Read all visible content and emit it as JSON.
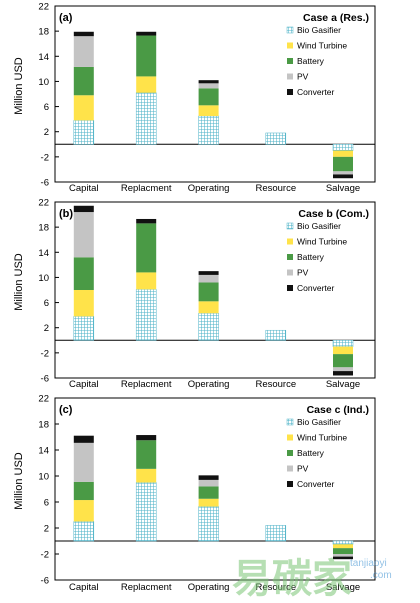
{
  "colors": {
    "bio_gasifier": "#4fb3c8",
    "wind_turbine": "#ffe34a",
    "battery": "#4a9a45",
    "pv": "#c4c4c4",
    "converter": "#111111",
    "axis": "#000000"
  },
  "chart_data": [
    {
      "type": "bar",
      "stacked": true,
      "panel_label": "(a)",
      "title": "Case a (Res.)",
      "ylabel": "Million USD",
      "ylim": [
        -6,
        22
      ],
      "yticks": [
        "22",
        "18",
        "14",
        "10",
        "6",
        "2",
        "-2",
        "-6"
      ],
      "yticks_values": [
        22,
        18,
        14,
        10,
        6,
        2,
        -2,
        -6
      ],
      "categories": [
        "Capital",
        "Replacment",
        "Operating",
        "Resource",
        "Salvage"
      ],
      "legend_position": "top-right",
      "series": [
        {
          "name": "Bio Gasifier",
          "values": [
            3.8,
            8.2,
            4.5,
            1.8,
            -1.0
          ]
        },
        {
          "name": "Wind Turbine",
          "values": [
            4.0,
            2.6,
            1.7,
            0,
            -1.0
          ]
        },
        {
          "name": "Battery",
          "values": [
            4.5,
            6.5,
            2.7,
            0,
            -2.3
          ]
        },
        {
          "name": "PV",
          "values": [
            4.9,
            0,
            0.8,
            0,
            -0.5
          ]
        },
        {
          "name": "Converter",
          "values": [
            0.7,
            0.6,
            0.5,
            0,
            -0.6
          ]
        }
      ]
    },
    {
      "type": "bar",
      "stacked": true,
      "panel_label": "(b)",
      "title": "Case b (Com.)",
      "ylabel": "Million USD",
      "ylim": [
        -6,
        22
      ],
      "yticks": [
        "22",
        "18",
        "14",
        "10",
        "6",
        "2",
        "-2",
        "-6"
      ],
      "yticks_values": [
        22,
        18,
        14,
        10,
        6,
        2,
        -2,
        -6
      ],
      "categories": [
        "Capital",
        "Replacment",
        "Operating",
        "Resource",
        "Salvage"
      ],
      "legend_position": "top-right",
      "series": [
        {
          "name": "Bio Gasifier",
          "values": [
            3.8,
            8.1,
            4.3,
            1.6,
            -1.0
          ]
        },
        {
          "name": "Wind Turbine",
          "values": [
            4.2,
            2.7,
            1.9,
            0,
            -1.2
          ]
        },
        {
          "name": "Battery",
          "values": [
            5.2,
            7.8,
            3.0,
            0,
            -2.1
          ]
        },
        {
          "name": "PV",
          "values": [
            7.2,
            0,
            1.2,
            0,
            -0.6
          ]
        },
        {
          "name": "Converter",
          "values": [
            1.0,
            0.7,
            0.6,
            0,
            -0.7
          ]
        }
      ]
    },
    {
      "type": "bar",
      "stacked": true,
      "panel_label": "(c)",
      "title": "Case c (Ind.)",
      "ylabel": "Million USD",
      "ylim": [
        -6,
        22
      ],
      "yticks": [
        "22",
        "18",
        "14",
        "10",
        "6",
        "2",
        "-2",
        "-6"
      ],
      "yticks_values": [
        22,
        18,
        14,
        10,
        6,
        2,
        -2,
        -6
      ],
      "categories": [
        "Capital",
        "Replacment",
        "Operating",
        "Resource",
        "Salvage"
      ],
      "legend_position": "top-right",
      "series": [
        {
          "name": "Bio Gasifier",
          "values": [
            3.0,
            9.0,
            5.3,
            2.4,
            -0.5
          ]
        },
        {
          "name": "Wind Turbine",
          "values": [
            3.3,
            2.1,
            1.2,
            0,
            -0.6
          ]
        },
        {
          "name": "Battery",
          "values": [
            2.8,
            4.4,
            1.9,
            0,
            -0.9
          ]
        },
        {
          "name": "PV",
          "values": [
            6.0,
            0,
            1.0,
            0,
            -0.4
          ]
        },
        {
          "name": "Converter",
          "values": [
            1.1,
            0.8,
            0.7,
            0,
            -0.4
          ]
        }
      ]
    }
  ],
  "watermark": {
    "brand": "易碳家",
    "site": "tanjiaoyi",
    "domain": ".com"
  }
}
